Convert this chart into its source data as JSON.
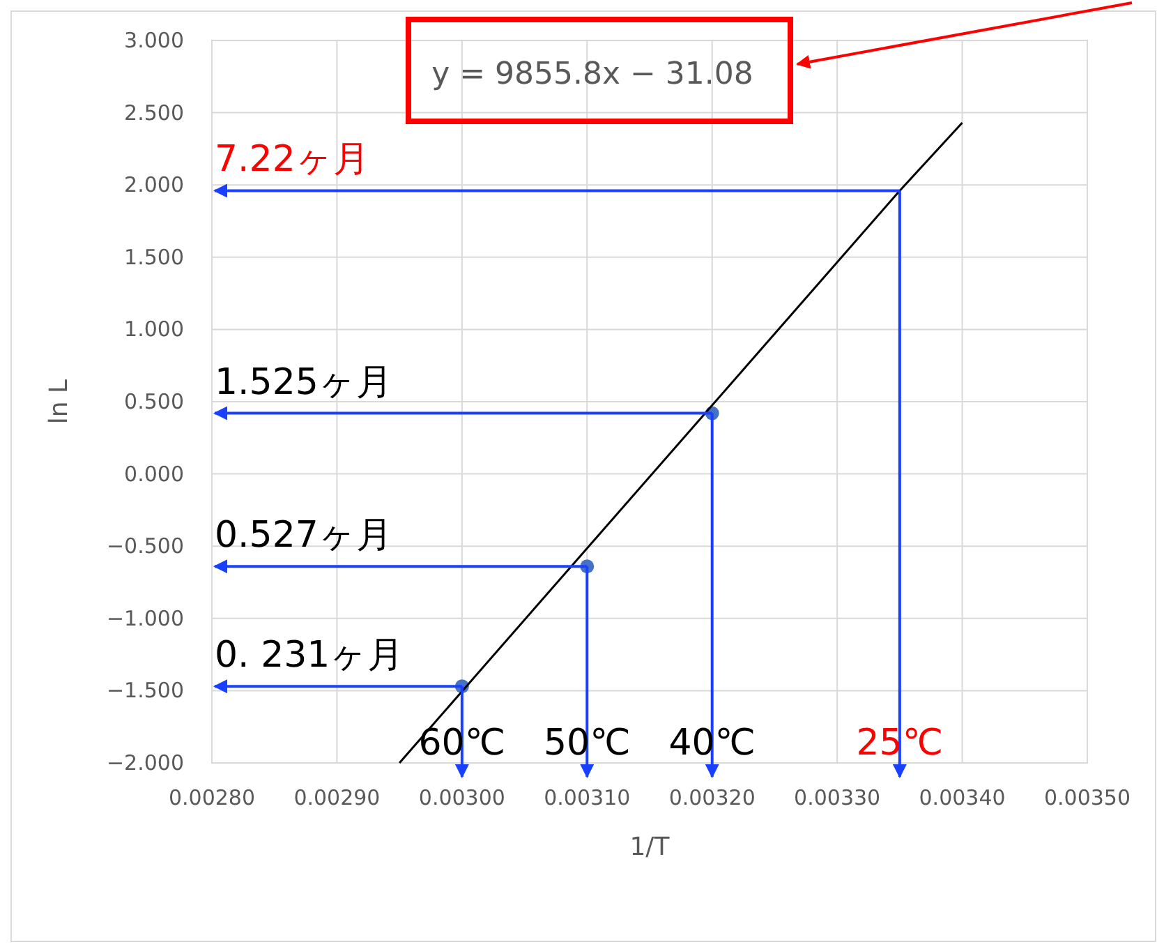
{
  "chart_data": {
    "type": "scatter",
    "xlabel": "1/T",
    "ylabel": "ln L",
    "grid": true,
    "xlim": [
      0.0028,
      0.0035
    ],
    "xticks": [
      {
        "value": 0.0028,
        "label": "0.00280"
      },
      {
        "value": 0.0029,
        "label": "0.00290"
      },
      {
        "value": 0.003,
        "label": "0.00300"
      },
      {
        "value": 0.0031,
        "label": "0.00310"
      },
      {
        "value": 0.0032,
        "label": "0.00320"
      },
      {
        "value": 0.0033,
        "label": "0.00330"
      },
      {
        "value": 0.0034,
        "label": "0.00340"
      },
      {
        "value": 0.0035,
        "label": "0.00350"
      }
    ],
    "ylim": [
      -2,
      3
    ],
    "yticks": [
      {
        "value": -2,
        "label": "−2.000"
      },
      {
        "value": -1.5,
        "label": "−1.500"
      },
      {
        "value": -1,
        "label": "−1.000"
      },
      {
        "value": -0.5,
        "label": "−0.500"
      },
      {
        "value": 0,
        "label": "0.000"
      },
      {
        "value": 0.5,
        "label": "0.500"
      },
      {
        "value": 1,
        "label": "1.000"
      },
      {
        "value": 1.5,
        "label": "1.500"
      },
      {
        "value": 2,
        "label": "2.000"
      },
      {
        "value": 2.5,
        "label": "2.500"
      },
      {
        "value": 3,
        "label": "3.000"
      }
    ],
    "series": [
      {
        "color": "#4472c4",
        "marker": "circle",
        "x": [
          0.003,
          0.0031,
          0.0032
        ],
        "values": [
          -1.47,
          -0.64,
          0.42
        ]
      },
      {
        "type": "line",
        "marker": "none",
        "color": "#000000",
        "x": [
          0.00295,
          0.00335,
          0.0034
        ],
        "values": [
          -2.0,
          1.96,
          2.43
        ]
      }
    ],
    "annotations": [
      "y = 9855.8x − 31.08",
      {
        "text": "0. 231ヶ月",
        "x": 0.003,
        "y": -1.47
      },
      {
        "text": "0.527ヶ月",
        "x": 0.0031,
        "y": -0.64
      },
      {
        "text": "1.525ヶ月",
        "x": 0.0032,
        "y": 0.42
      },
      {
        "text": "7.22ヶ月",
        "x": 0.00335,
        "y": 1.96
      },
      {
        "text": "60℃",
        "x": 0.003
      },
      {
        "text": "50℃",
        "x": 0.0031
      },
      {
        "text": "40℃",
        "x": 0.0032
      },
      {
        "text": "25℃",
        "x": 0.00335,
        "y": 1.96
      }
    ]
  }
}
